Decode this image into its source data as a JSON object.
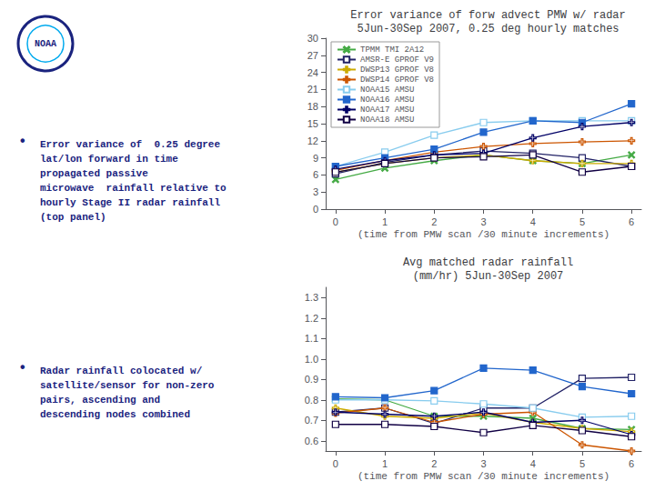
{
  "chart_data": [
    {
      "type": "line",
      "title": "Error variance of forw advect PMW w/ radar\n5Jun-30Sep 2007, 0.25 deg hourly matches",
      "xlabel": "(time from PMW scan /30 minute increments)",
      "x": [
        0,
        1,
        2,
        3,
        4,
        5,
        6
      ],
      "xlim": [
        -0.2,
        6.2
      ],
      "xticks": [
        0,
        1,
        2,
        3,
        4,
        5,
        6
      ],
      "ylim": [
        0,
        30
      ],
      "yticks": [
        0,
        3,
        6,
        9,
        12,
        15,
        18,
        21,
        24,
        27,
        30
      ],
      "grid": false,
      "legend": "upper left",
      "annotations": [
        "NOAA",
        "•",
        "Error variance of  0.25 degree\nlat/lon forward in time\npropagated passive\nmicrowave  rainfall relative to\nhourly Stage II radar rainfall\n(top panel)",
        "•",
        "Radar rainfall colocated w/\nsatellite/sensor for non-zero\npairs, ascending and\ndescending nodes combined"
      ],
      "series": [
        {
          "name": "TPMM TMI 2A12",
          "color": "#44aa44",
          "marker": "x",
          "values": [
            5.2,
            7.2,
            8.5,
            9.5,
            8.5,
            8.0,
            9.5
          ]
        },
        {
          "name": "AMSR-E GPROF V9",
          "color": "#222266",
          "marker": "square",
          "values": [
            6.2,
            8.2,
            9.5,
            10.2,
            9.8,
            9.0,
            7.5
          ]
        },
        {
          "name": "DWSP13 GPROF V8",
          "color": "#ccaa00",
          "marker": "plus",
          "values": [
            6.5,
            8.0,
            9.0,
            9.5,
            8.5,
            8.0,
            8.0
          ]
        },
        {
          "name": "DWSP14 GPROF V8",
          "color": "#cc5500",
          "marker": "plus",
          "values": [
            6.8,
            8.5,
            10.0,
            11.0,
            11.5,
            11.8,
            12.0
          ]
        },
        {
          "name": "NOAA15 AMSU",
          "color": "#88ccee",
          "marker": "square",
          "values": [
            7.5,
            10.0,
            13.0,
            15.2,
            15.5,
            15.5,
            15.5
          ]
        },
        {
          "name": "NOAA16 AMSU",
          "color": "#2266cc",
          "marker": "filled_square",
          "values": [
            7.5,
            9.0,
            10.5,
            13.5,
            15.5,
            15.2,
            18.5
          ]
        },
        {
          "name": "NOAA17 AMSU",
          "color": "#000066",
          "marker": "plus",
          "values": [
            7.0,
            8.5,
            9.5,
            9.8,
            12.5,
            14.5,
            15.2
          ]
        },
        {
          "name": "NOAA18 AMSU",
          "color": "#110044",
          "marker": "square",
          "values": [
            6.5,
            8.0,
            9.0,
            9.2,
            9.5,
            6.5,
            7.5
          ]
        }
      ]
    },
    {
      "type": "line",
      "title": "Avg matched radar rainfall\n(mm/hr) 5Jun-30Sep 2007",
      "xlabel": "(time from PMW scan /30 minute increments)",
      "x": [
        0,
        1,
        2,
        3,
        4,
        5,
        6
      ],
      "xlim": [
        -0.2,
        6.2
      ],
      "xticks": [
        0,
        1,
        2,
        3,
        4,
        5,
        6
      ],
      "ylim": [
        0.55,
        1.35
      ],
      "yticks": [
        0.6,
        0.7,
        0.8,
        0.9,
        {
          "value": 1.0,
          "label": "1.0"
        },
        1.1,
        1.2,
        1.3
      ],
      "grid": false,
      "series": [
        {
          "color": "#44aa44",
          "marker": "x",
          "values": [
            0.805,
            0.8,
            0.72,
            0.72,
            0.71,
            0.66,
            0.655
          ]
        },
        {
          "color": "#222266",
          "marker": "square",
          "values": [
            0.74,
            0.76,
            0.685,
            0.76,
            0.76,
            0.905,
            0.91
          ]
        },
        {
          "color": "#ccaa00",
          "marker": "plus",
          "values": [
            0.76,
            0.72,
            0.71,
            0.735,
            0.69,
            0.66,
            0.645
          ]
        },
        {
          "color": "#cc5500",
          "marker": "plus",
          "values": [
            0.735,
            0.76,
            0.69,
            0.73,
            0.74,
            0.58,
            0.55
          ]
        },
        {
          "color": "#88ccee",
          "marker": "square",
          "values": [
            0.8,
            0.8,
            0.795,
            0.78,
            0.76,
            0.715,
            0.72
          ]
        },
        {
          "color": "#2266cc",
          "marker": "filled_square",
          "values": [
            0.815,
            0.81,
            0.845,
            0.955,
            0.945,
            0.865,
            0.83
          ]
        },
        {
          "color": "#000066",
          "marker": "plus",
          "values": [
            0.74,
            0.73,
            0.72,
            0.74,
            0.69,
            0.7,
            0.63
          ]
        },
        {
          "color": "#110044",
          "marker": "square",
          "values": [
            0.68,
            0.68,
            0.67,
            0.64,
            0.675,
            0.65,
            0.62
          ]
        }
      ]
    }
  ]
}
